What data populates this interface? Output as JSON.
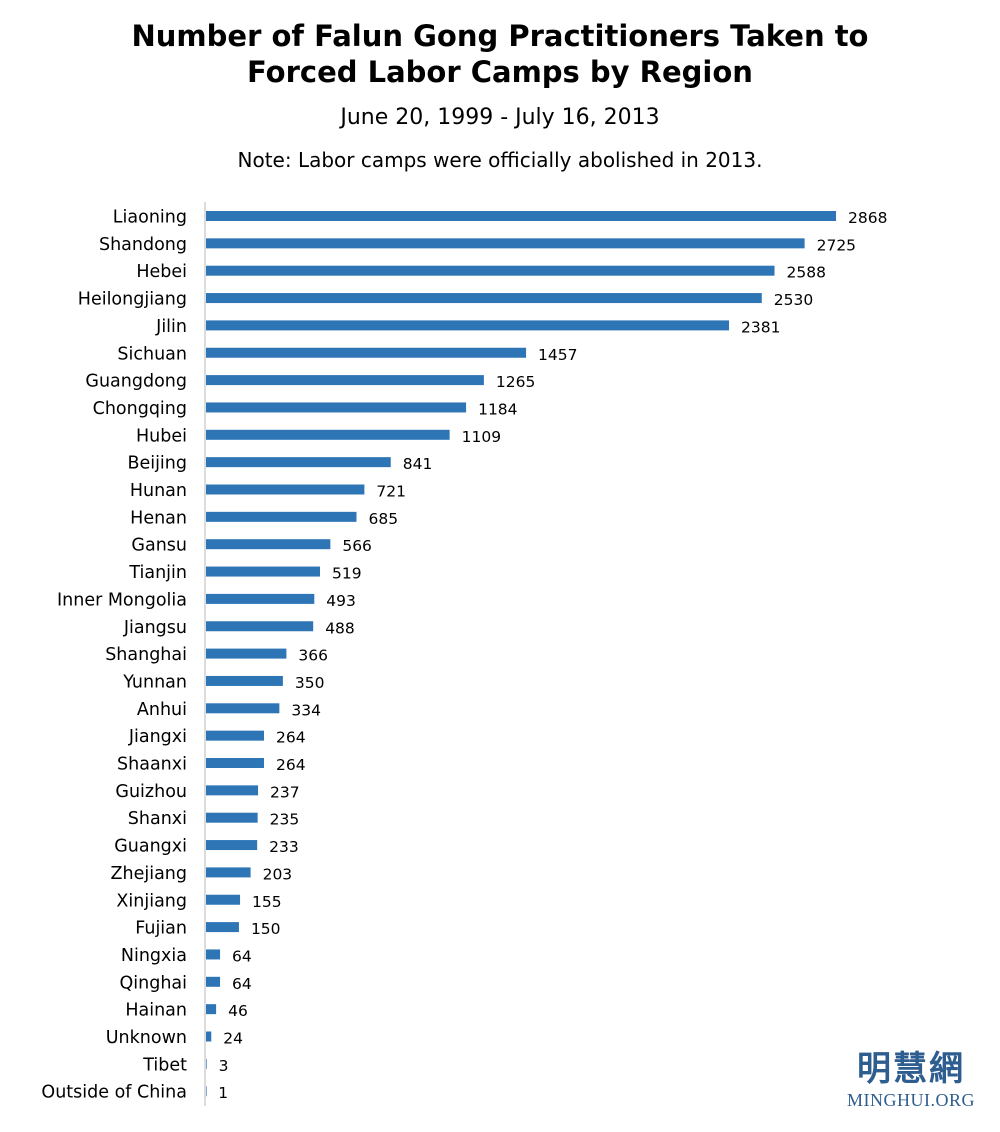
{
  "title_line1": "Number of Falun Gong Practitioners Taken to",
  "title_line2": "Forced Labor Camps by Region",
  "subtitle": "June 20, 1999 - July 16, 2013",
  "note": "Note: Labor camps were officially abolished in 2013.",
  "watermark": {
    "chinese": "明慧網",
    "english": "MINGHUI.ORG"
  },
  "chart_data": {
    "type": "bar",
    "orientation": "horizontal",
    "bar_color": "#2e75b6",
    "axis_color": "#d0d0d0",
    "xlim": [
      0,
      3050
    ],
    "grid": false,
    "legend": "none",
    "categories": [
      "Liaoning",
      "Shandong",
      "Hebei",
      "Heilongjiang",
      "Jilin",
      "Sichuan",
      "Guangdong",
      "Chongqing",
      "Hubei",
      "Beijing",
      "Hunan",
      "Henan",
      "Gansu",
      "Tianjin",
      "Inner Mongolia",
      "Jiangsu",
      "Shanghai",
      "Yunnan",
      "Anhui",
      "Jiangxi",
      "Shaanxi",
      "Guizhou",
      "Shanxi",
      "Guangxi",
      "Zhejiang",
      "Xinjiang",
      "Fujian",
      "Ningxia",
      "Qinghai",
      "Hainan",
      "Unknown",
      "Tibet",
      "Outside of China"
    ],
    "values": [
      2868,
      2725,
      2588,
      2530,
      2381,
      1457,
      1265,
      1184,
      1109,
      841,
      721,
      685,
      566,
      519,
      493,
      488,
      366,
      350,
      334,
      264,
      264,
      237,
      235,
      233,
      203,
      155,
      150,
      64,
      64,
      46,
      24,
      3,
      1
    ]
  }
}
